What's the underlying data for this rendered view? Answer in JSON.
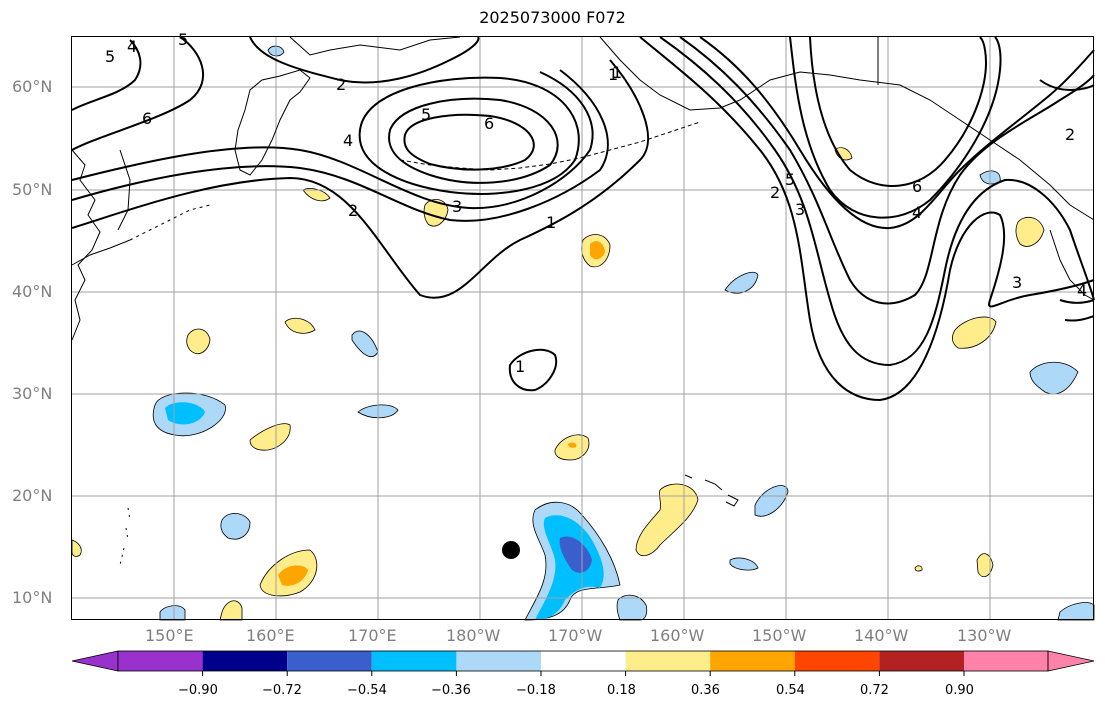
{
  "title": "2025073000 F072",
  "lat_labels": [
    "60°N",
    "50°N",
    "40°N",
    "30°N",
    "20°N",
    "10°N"
  ],
  "lon_labels": [
    "150°E",
    "160°E",
    "170°E",
    "180°W",
    "170°W",
    "160°W",
    "150°W",
    "140°W",
    "130°W"
  ],
  "colorbar": {
    "ticks": [
      "−0.90",
      "−0.72",
      "−0.54",
      "−0.36",
      "−0.18",
      "0.18",
      "0.36",
      "0.54",
      "0.72",
      "0.90"
    ],
    "colors": [
      "#9932cc",
      "#00008b",
      "#3a5fcd",
      "#00bfff",
      "#add8f7",
      "#ffffff",
      "#ffec8b",
      "#ffa500",
      "#ff4500",
      "#b22222",
      "#ff82ab"
    ]
  },
  "contour_labels": [
    "5",
    "4",
    "5",
    "6",
    "2",
    "1",
    "4",
    "5",
    "6",
    "3",
    "2",
    "1",
    "1",
    "5",
    "3",
    "2",
    "6",
    "4",
    "3",
    "2",
    "4",
    "1"
  ],
  "colors": {
    "grid": "#a0a0a0",
    "coast": "#000000",
    "tick_label": "#7f7f7f"
  }
}
